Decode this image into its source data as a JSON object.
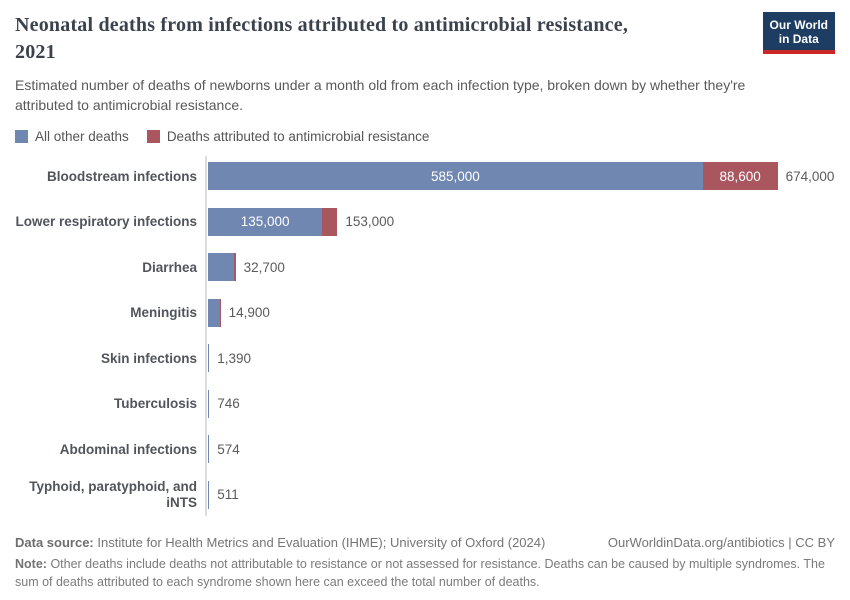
{
  "header": {
    "title_line1": "Neonatal deaths from infections attributed to antimicrobial resistance,",
    "title_line2": "2021",
    "subtitle": "Estimated number of deaths of newborns under a month old from each infection type, broken down by whether they're attributed to antimicrobial resistance.",
    "logo": {
      "line1": "Our World",
      "line2": "in Data",
      "background": "#1d3d63",
      "accent": "#cb2727"
    }
  },
  "legend": {
    "items": [
      {
        "label": "All other deaths",
        "color": "#7087b1"
      },
      {
        "label": "Deaths attributed to antimicrobial resistance",
        "color": "#a9565f"
      }
    ]
  },
  "chart": {
    "axis_color": "#dcdcdc",
    "rows": [
      {
        "label": "Bloodstream infections",
        "other": 585000,
        "amr": 88600,
        "total": 674000,
        "other_label": "585,000",
        "amr_label": "88,600",
        "total_label": "674,000"
      },
      {
        "label": "Lower respiratory infections",
        "other": 135000,
        "amr": 18000,
        "total": 153000,
        "other_label": "135,000",
        "amr_label": "",
        "total_label": "153,000"
      },
      {
        "label": "Diarrhea",
        "other": 30900,
        "amr": 1800,
        "total": 32700,
        "other_label": "",
        "amr_label": "",
        "total_label": "32,700"
      },
      {
        "label": "Meningitis",
        "other": 13700,
        "amr": 1200,
        "total": 14900,
        "other_label": "",
        "amr_label": "",
        "total_label": "14,900"
      },
      {
        "label": "Skin infections",
        "other": 1390,
        "amr": 0,
        "total": 1390,
        "other_label": "",
        "amr_label": "",
        "total_label": "1,390"
      },
      {
        "label": "Tuberculosis",
        "other": 746,
        "amr": 0,
        "total": 746,
        "other_label": "",
        "amr_label": "",
        "total_label": "746"
      },
      {
        "label": "Abdominal infections",
        "other": 574,
        "amr": 0,
        "total": 574,
        "other_label": "",
        "amr_label": "",
        "total_label": "574"
      },
      {
        "label": "Typhoid, paratyphoid, and iNTS",
        "other": 511,
        "amr": 0,
        "total": 511,
        "other_label": "",
        "amr_label": "",
        "total_label": "511"
      }
    ]
  },
  "chart_data": {
    "type": "bar",
    "orientation": "horizontal",
    "stacked": true,
    "title": "Neonatal deaths from infections attributed to antimicrobial resistance, 2021",
    "subtitle": "Estimated number of deaths of newborns under a month old from each infection type, broken down by whether they're attributed to antimicrobial resistance.",
    "categories": [
      "Bloodstream infections",
      "Lower respiratory infections",
      "Diarrhea",
      "Meningitis",
      "Skin infections",
      "Tuberculosis",
      "Abdominal infections",
      "Typhoid, paratyphoid, and iNTS"
    ],
    "series": [
      {
        "name": "All other deaths",
        "color": "#7087b1",
        "values": [
          585000,
          135000,
          30900,
          13700,
          1390,
          746,
          574,
          511
        ]
      },
      {
        "name": "Deaths attributed to antimicrobial resistance",
        "color": "#a9565f",
        "values": [
          88600,
          18000,
          1800,
          1200,
          0,
          0,
          0,
          0
        ]
      }
    ],
    "totals": [
      674000,
      153000,
      32700,
      14900,
      1390,
      746,
      574,
      511
    ],
    "total_labels": [
      "674,000",
      "153,000",
      "32,700",
      "14,900",
      "1,390",
      "746",
      "574",
      "511"
    ],
    "xlim": [
      0,
      674000
    ],
    "grid": false,
    "legend_position": "top"
  },
  "footer": {
    "source_label": "Data source:",
    "source_text": "Institute for Health Metrics and Evaluation (IHME); University of Oxford (2024)",
    "link_text": "OurWorldinData.org/antibiotics | CC BY",
    "note_label": "Note:",
    "note_text": "Other deaths include deaths not attributable to resistance or not assessed for resistance. Deaths can be caused by multiple syndromes. The sum of deaths attributed to each syndrome shown here can exceed the total number of deaths."
  }
}
